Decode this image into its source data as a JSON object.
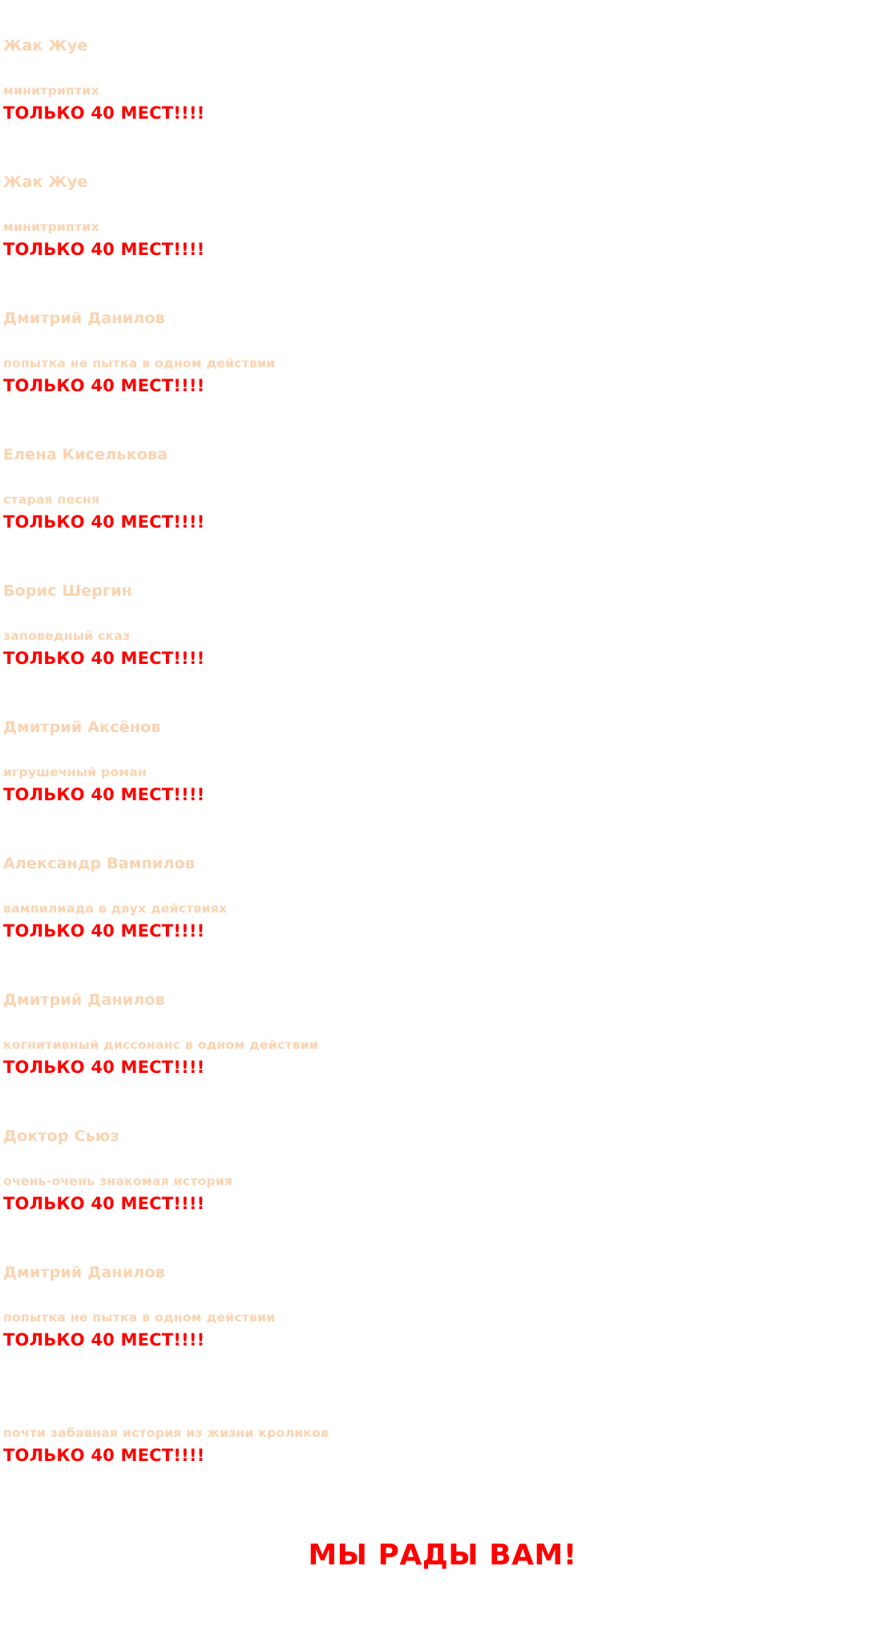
{
  "colors": {
    "text_light": "#fad3b0",
    "accent_red": "#ff0000",
    "background": "#ffffff"
  },
  "entries": [
    {
      "author": "Жак Жуе",
      "subtitle": "минитриптих",
      "seats": "ТОЛЬКО 40 МЕСТ!!!!"
    },
    {
      "author": "Жак Жуе",
      "subtitle": "минитриптих",
      "seats": "ТОЛЬКО 40 МЕСТ!!!!"
    },
    {
      "author": "Дмитрий Данилов",
      "subtitle": "попытка не пытка в одном действии",
      "seats": "ТОЛЬКО 40 МЕСТ!!!!"
    },
    {
      "author": "Елена Киселькова",
      "subtitle": "старая песня",
      "seats": "ТОЛЬКО 40 МЕСТ!!!!"
    },
    {
      "author": "Борис Шергин",
      "subtitle": "заповедный сказ",
      "seats": "ТОЛЬКО 40 МЕСТ!!!!"
    },
    {
      "author": "Дмитрий Аксёнов",
      "subtitle": "игрушечный роман",
      "seats": "ТОЛЬКО 40 МЕСТ!!!!"
    },
    {
      "author": "Александр Вампилов",
      "subtitle": "вампилиада  в двух действиях",
      "seats": "ТОЛЬКО 40 МЕСТ!!!!"
    },
    {
      "author": "Дмитрий Данилов",
      "subtitle": "когнитивный диссонанс в одном действии",
      "seats": "ТОЛЬКО 40 МЕСТ!!!!"
    },
    {
      "author": "Доктор Сьюз",
      "subtitle": "очень-очень знакомая история",
      "seats": "ТОЛЬКО 40 МЕСТ!!!!"
    },
    {
      "author": "Дмитрий Данилов",
      "subtitle": "попытка не пытка в одном действии",
      "seats": "ТОЛЬКО 40 МЕСТ!!!!"
    },
    {
      "author": "",
      "subtitle": "почти забавная история из жизни кроликов",
      "seats": "ТОЛЬКО 40 МЕСТ!!!!"
    }
  ],
  "footer": {
    "welcome": "МЫ РАДЫ ВАМ!"
  }
}
